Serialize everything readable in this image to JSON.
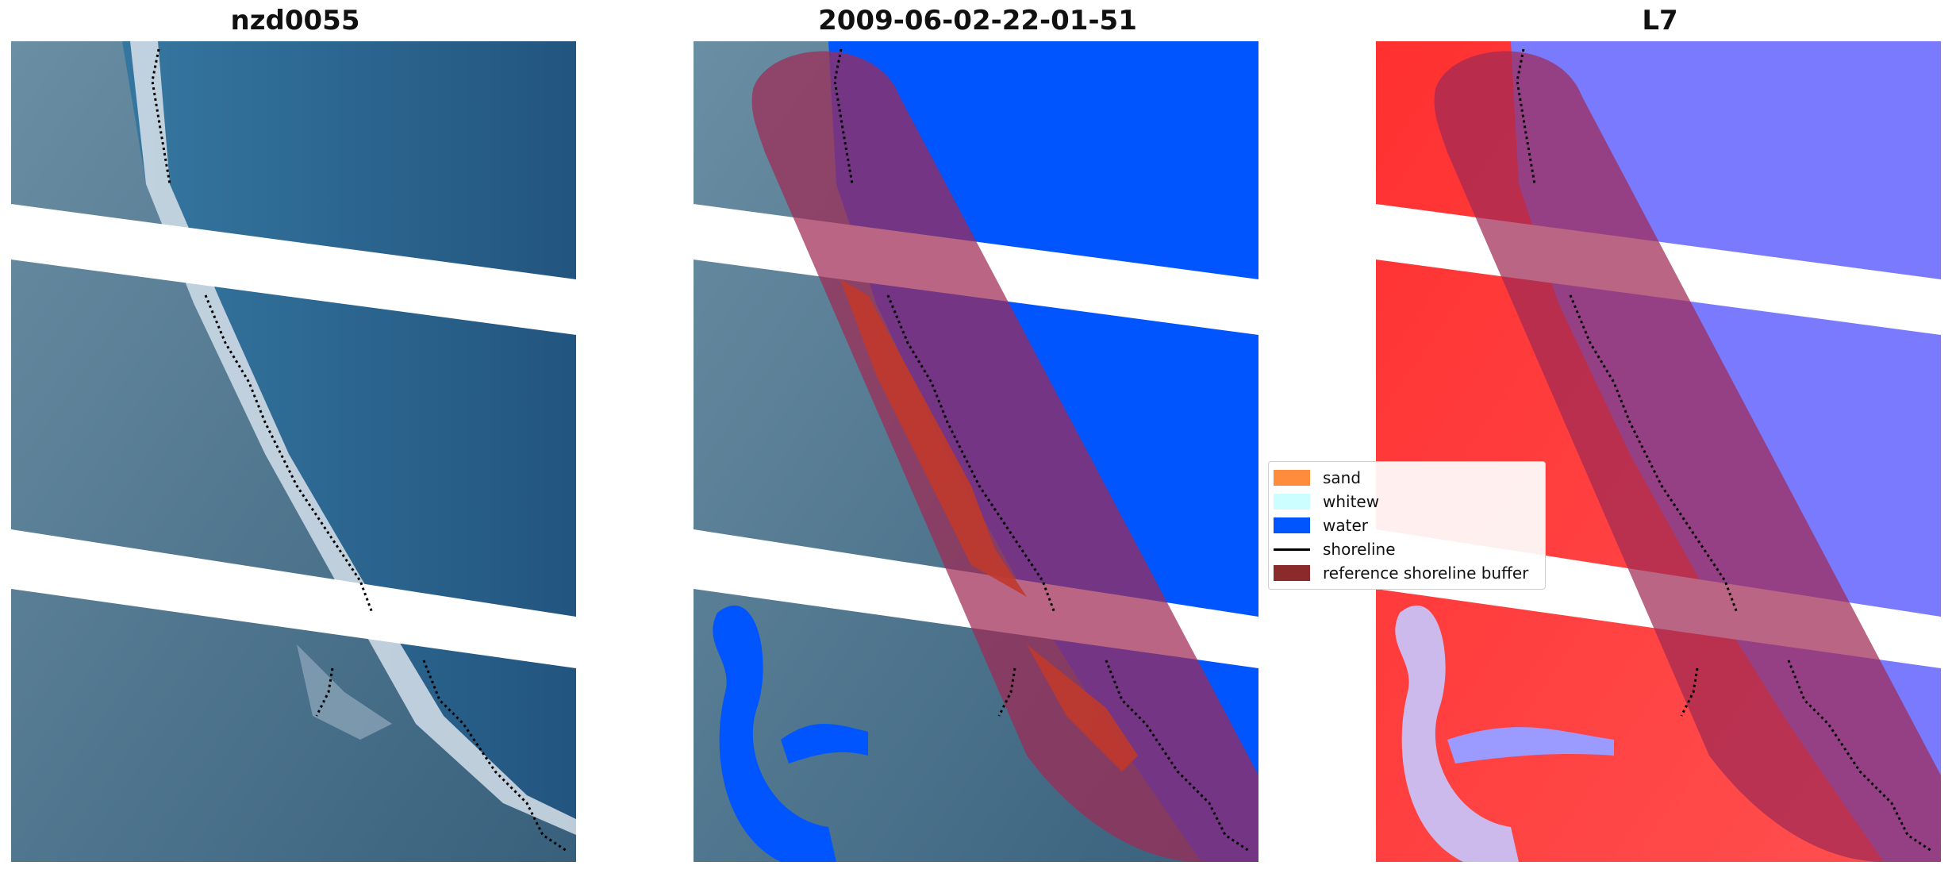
{
  "panels": [
    {
      "title": "nzd0055",
      "kind": "rgb-image"
    },
    {
      "title": "2009-06-02-22-01-51",
      "kind": "classified-image"
    },
    {
      "title": "L7",
      "kind": "index-image"
    }
  ],
  "legend": {
    "items": [
      {
        "label": "sand",
        "color": "#ff8c3c",
        "type": "patch"
      },
      {
        "label": "whitew",
        "color": "#ccfdff",
        "type": "patch"
      },
      {
        "label": "water",
        "color": "#0055ff",
        "type": "patch"
      },
      {
        "label": "shoreline",
        "color": "#000000",
        "type": "line"
      },
      {
        "label": "reference shoreline buffer",
        "color": "#8b2a2a",
        "type": "patch"
      }
    ]
  },
  "colors": {
    "water": "#0055ff",
    "buffer": "#8b2a2a",
    "ocean_rgb": "#28648f",
    "land_rgb": "#4a6f86",
    "index_positive": "#ff2a2a",
    "index_negative": "#7a7aff"
  }
}
